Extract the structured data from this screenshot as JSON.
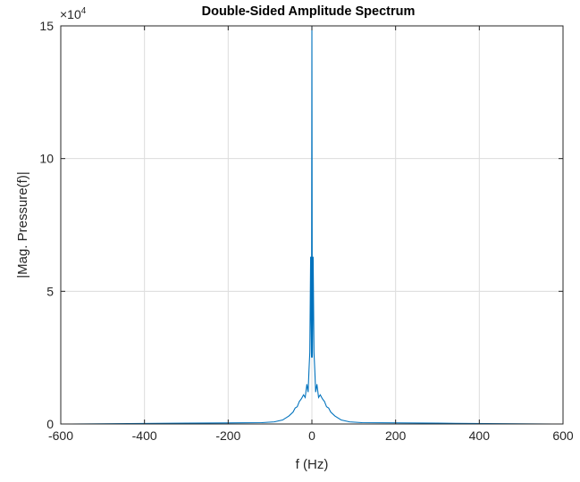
{
  "chart_data": {
    "type": "line",
    "title": "Double-Sided Amplitude Spectrum",
    "xlabel": "f (Hz)",
    "ylabel": "|Mag. Pressure(f)|",
    "xlim": [
      -600,
      600
    ],
    "ylim": [
      0,
      150000
    ],
    "x_ticks": [
      -600,
      -400,
      -200,
      0,
      200,
      400,
      600
    ],
    "x_tick_labels": [
      "-600",
      "-400",
      "-200",
      "0",
      "200",
      "400",
      "600"
    ],
    "y_ticks": [
      0,
      50000,
      100000,
      150000
    ],
    "y_tick_labels": [
      "0",
      "5",
      "10",
      "15"
    ],
    "y_exponent_base": "×10",
    "y_exponent_power": "4",
    "grid": true,
    "line_color": "#0072BD",
    "series": [
      {
        "x": [
          -575,
          -300,
          -120,
          -90,
          -70,
          -55,
          -45,
          -40,
          -35,
          -30,
          -25,
          -20,
          -16,
          -12,
          -9,
          -7,
          -5,
          -3,
          -2,
          -1,
          0,
          1,
          2,
          3,
          5,
          7,
          9,
          12,
          16,
          20,
          25,
          30,
          35,
          40,
          45,
          55,
          70,
          90,
          120,
          300,
          575
        ],
        "y": [
          0,
          300,
          500,
          800,
          1500,
          3000,
          4500,
          6000,
          6500,
          8500,
          9500,
          11000,
          10000,
          15000,
          12000,
          20000,
          27000,
          63000,
          40000,
          25000,
          150000,
          25000,
          40000,
          63000,
          27000,
          20000,
          12000,
          15000,
          10000,
          11000,
          9500,
          8500,
          6500,
          6000,
          4500,
          3000,
          1500,
          800,
          500,
          300,
          0
        ]
      }
    ]
  }
}
